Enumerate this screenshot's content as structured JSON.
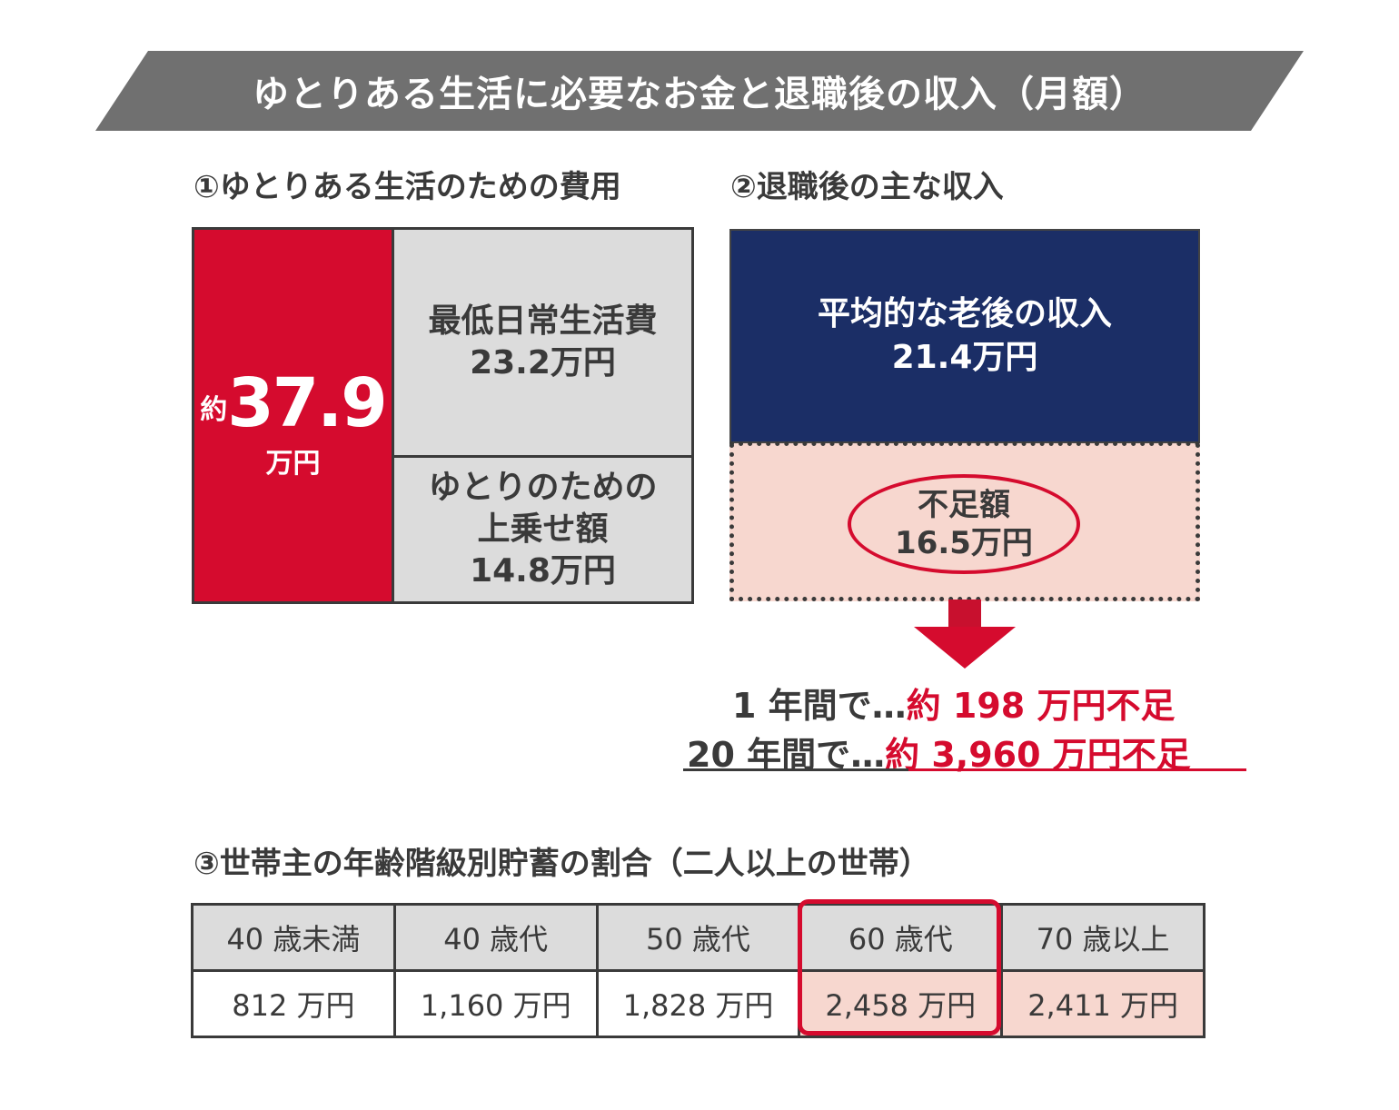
{
  "colors": {
    "banner": "#707070",
    "red": "#d50b2e",
    "navy": "#1b2e66",
    "gray": "#dcdcdc",
    "pink": "#f7d7cf",
    "text": "#3a3a3a"
  },
  "title": "ゆとりある生活に必要なお金と退職後の収入（月額）",
  "section1": {
    "heading": "①ゆとりある生活のための費用",
    "total_prefix": "約",
    "total_value": "37.9",
    "total_unit": "万円",
    "base_label": "最低日常生活費",
    "base_value": "23.2万円",
    "extra_label_1": "ゆとりのための",
    "extra_label_2": "上乗せ額",
    "extra_value": "14.8万円"
  },
  "section2": {
    "heading": "②退職後の主な収入",
    "income_label": "平均的な老後の収入",
    "income_value": "21.4万円",
    "shortfall_label": "不足額",
    "shortfall_value": "16.5万円",
    "line1_prefix": "1 年間で…",
    "line1_value": "約 198 万円不足",
    "line2_prefix": "20 年間で…",
    "line2_value": "約 3,960 万円不足"
  },
  "section3": {
    "heading": "③世帯主の年齢階級別貯蓄の割合（二人以上の世帯）"
  },
  "chart_data": {
    "type": "table",
    "columns": [
      "40 歳未満",
      "40 歳代",
      "50 歳代",
      "60 歳代",
      "70 歳以上"
    ],
    "values": [
      "812 万円",
      "1,160 万円",
      "1,828 万円",
      "2,458 万円",
      "2,411 万円"
    ],
    "highlighted_column": "60 歳代"
  }
}
